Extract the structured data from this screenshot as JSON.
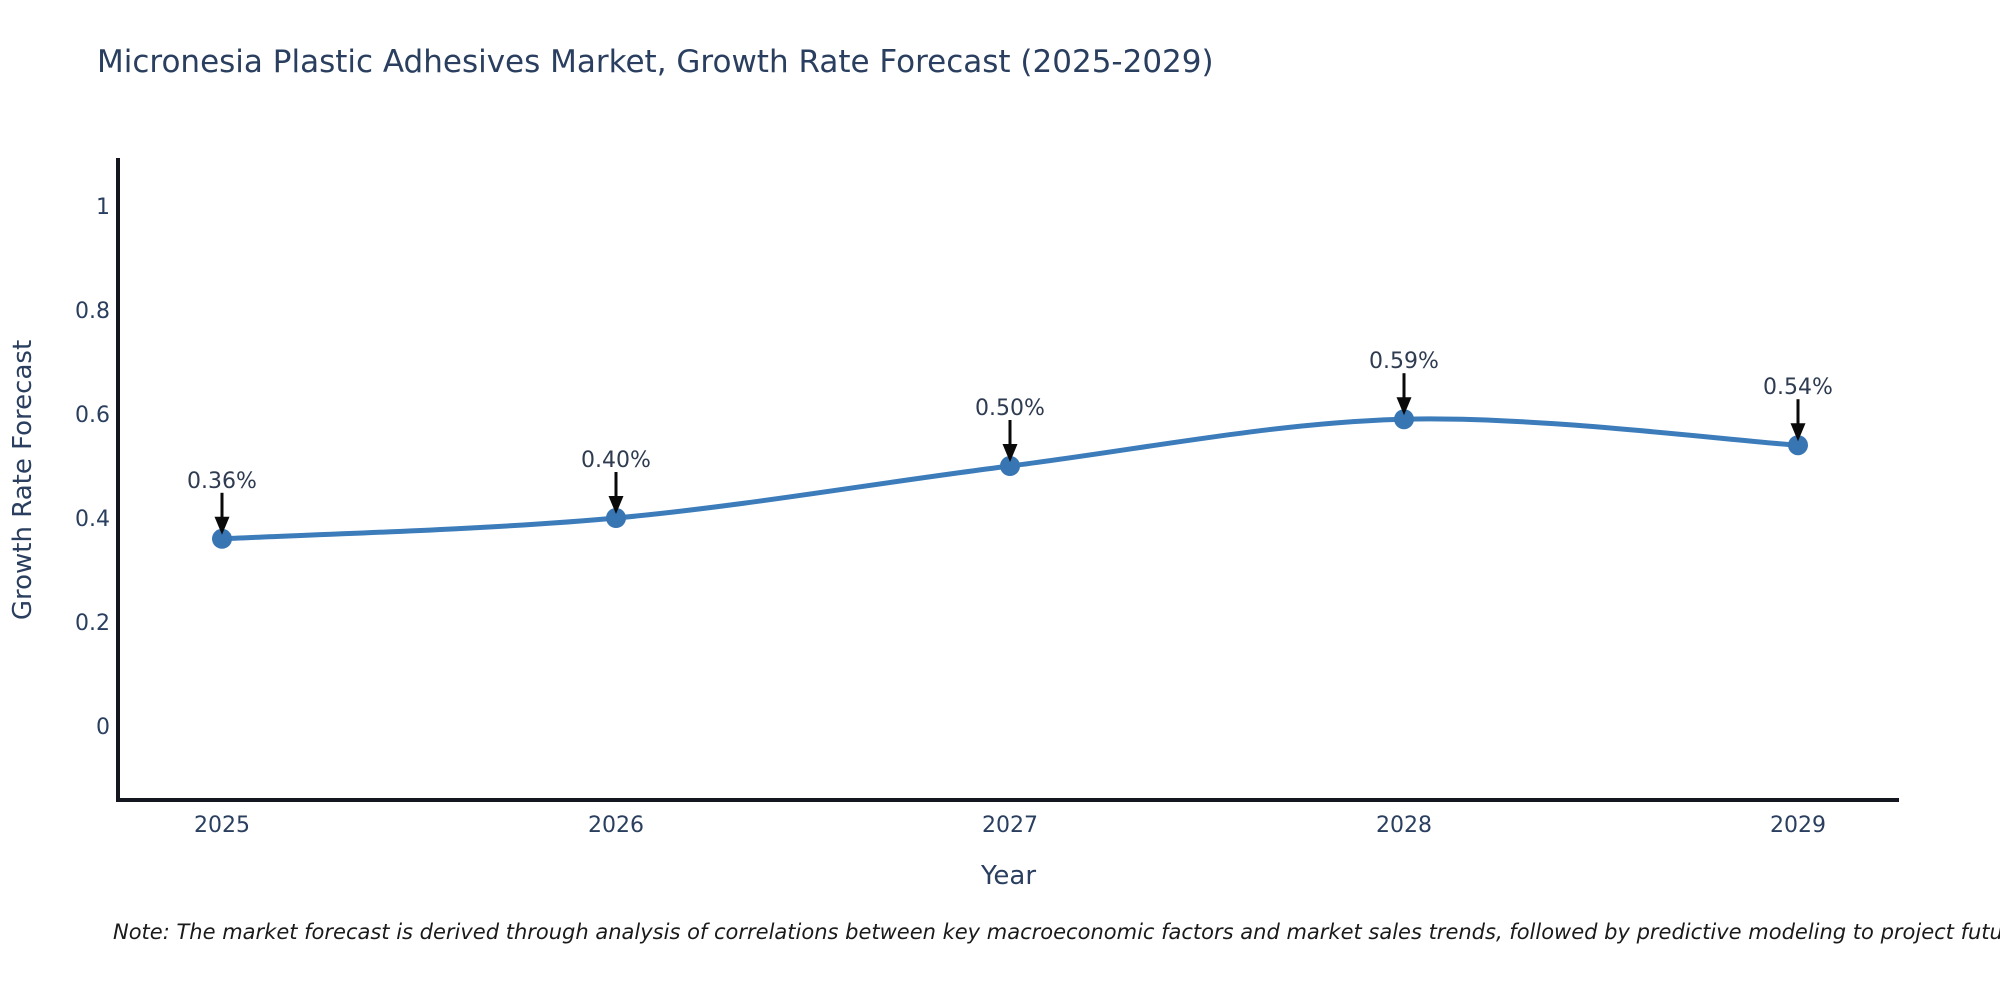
{
  "title": "Micronesia Plastic Adhesives Market, Growth Rate Forecast (2025-2029)",
  "footnote": "Note: The market forecast is derived through analysis of correlations between key macroeconomic factors and market sales trends, followed by predictive modeling to project future sales",
  "chart_data": {
    "type": "line",
    "title": "Micronesia Plastic Adhesives Market, Growth Rate Forecast (2025-2029)",
    "x": [
      "2025",
      "2026",
      "2027",
      "2028",
      "2029"
    ],
    "series": [
      {
        "name": "Growth Rate Forecast",
        "values": [
          0.36,
          0.4,
          0.5,
          0.59,
          0.54
        ],
        "point_labels": [
          "0.36%",
          "0.40%",
          "0.50%",
          "0.59%",
          "0.54%"
        ]
      }
    ],
    "xlabel": "Year",
    "ylabel": "Growth Rate Forecast",
    "yticks": [
      0,
      0.2,
      0.4,
      0.6,
      0.8,
      1
    ],
    "ytick_labels": [
      "0",
      "0.2",
      "0.4",
      "0.6",
      "0.8",
      "1"
    ],
    "ylim": [
      -0.15,
      1.09
    ],
    "grid": false,
    "legend": false,
    "curve": "spline",
    "annotations": "value label with downward black arrow above each data point",
    "colors": {
      "line": "#3c7cbb",
      "marker": "#3875b3",
      "axis": "#14171f",
      "tick_text": "#2a3f5f",
      "title_text": "#2a3f5f",
      "axis_title_text": "#2a3f5f",
      "annotation_text": "#2e3b50",
      "annotation_arrow": "#0a0a0a",
      "note_text": "#1a1a1a",
      "background": "#ffffff"
    }
  }
}
